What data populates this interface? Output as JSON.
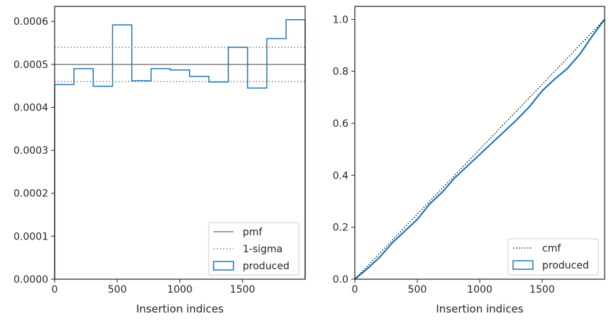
{
  "chart_data": [
    {
      "type": "step",
      "xlabel": "Insertion indices",
      "ylabel": "",
      "xlim": [
        0,
        2000
      ],
      "ylim": [
        0,
        0.000635
      ],
      "xticks": [
        "0",
        "500",
        "1000",
        "1500"
      ],
      "xtick_values": [
        0,
        500,
        1000,
        1500
      ],
      "yticks": [
        "0.0000",
        "0.0001",
        "0.0002",
        "0.0003",
        "0.0004",
        "0.0005",
        "0.0006"
      ],
      "ytick_values": [
        0,
        0.0001,
        0.0002,
        0.0003,
        0.0004,
        0.0005,
        0.0006
      ],
      "grid": false,
      "legend_position": "lower-right",
      "lines": [
        {
          "name": "pmf",
          "y": 0.0005,
          "style": "solid",
          "color": "#808080"
        },
        {
          "name": "1-sigma",
          "y": [
            0.00046,
            0.00054
          ],
          "style": "dotted",
          "color": "#808080"
        }
      ],
      "histogram": {
        "name": "produced",
        "color": "#1f77b4",
        "bin_edges": [
          0,
          154,
          308,
          462,
          616,
          770,
          924,
          1078,
          1232,
          1386,
          1540,
          1694,
          1848,
          2000
        ],
        "values": [
          0.000453,
          0.00049,
          0.000449,
          0.000592,
          0.000462,
          0.00049,
          0.000487,
          0.000472,
          0.000459,
          0.00054,
          0.000445,
          0.00056,
          0.000604
        ]
      }
    },
    {
      "type": "line",
      "xlabel": "Insertion indices",
      "ylabel": "",
      "xlim": [
        0,
        2000
      ],
      "ylim": [
        0,
        1.05
      ],
      "xticks": [
        "0",
        "500",
        "1000",
        "1500"
      ],
      "xtick_values": [
        0,
        500,
        1000,
        1500
      ],
      "yticks": [
        "0.0",
        "0.2",
        "0.4",
        "0.6",
        "0.8",
        "1.0"
      ],
      "ytick_values": [
        0,
        0.2,
        0.4,
        0.6,
        0.8,
        1.0
      ],
      "grid": false,
      "legend_position": "lower-right",
      "series": [
        {
          "name": "cmf",
          "style": "dotted",
          "color": "#000000",
          "x": [
            0,
            2000
          ],
          "y": [
            0,
            1.0
          ]
        },
        {
          "name": "produced",
          "style": "solid",
          "color": "#1f77b4",
          "x": [
            0,
            100,
            200,
            300,
            400,
            500,
            600,
            700,
            800,
            900,
            1000,
            1100,
            1200,
            1300,
            1400,
            1500,
            1600,
            1700,
            1800,
            1900,
            2000
          ],
          "y": [
            0,
            0.04,
            0.085,
            0.14,
            0.185,
            0.23,
            0.29,
            0.335,
            0.39,
            0.435,
            0.48,
            0.525,
            0.57,
            0.615,
            0.665,
            0.725,
            0.77,
            0.81,
            0.865,
            0.935,
            1.0
          ]
        }
      ]
    }
  ]
}
